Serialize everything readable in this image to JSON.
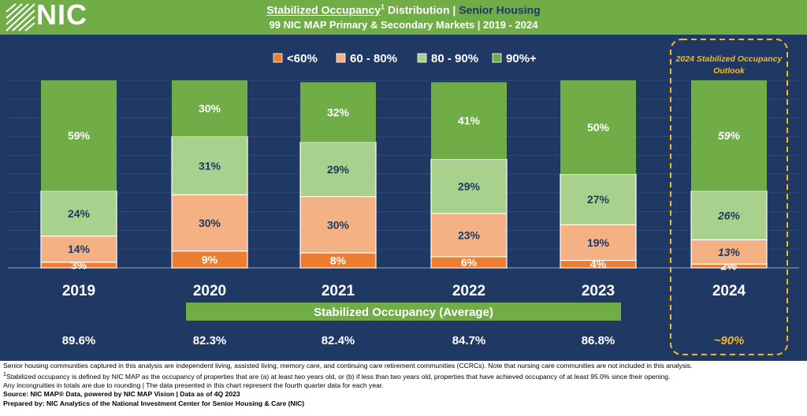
{
  "header": {
    "logo_text": "NIC",
    "title_part1": "Stabilized Occupancy",
    "title_sup": "1",
    "title_part2": " Distribution | ",
    "title_part3": "Senior Housing",
    "subtitle": "99 NIC MAP Primary & Secondary Markets | 2019 - 2024"
  },
  "outlook_label": "2024 Stabilized Occupancy Outlook",
  "average_banner": "Stabilized Occupancy (Average)",
  "colors": {
    "background": "#1f3864",
    "header": "#70ad47",
    "lt60": "#ed7d31",
    "60_80": "#f4b183",
    "80_90": "#a9d18e",
    "90_plus": "#70ad47",
    "outlook": "#f5b820"
  },
  "chart_data": {
    "type": "bar",
    "stacked": true,
    "percent_stacked": true,
    "categories": [
      "2019",
      "2020",
      "2021",
      "2022",
      "2023",
      "2024"
    ],
    "series": [
      {
        "name": "<60%",
        "labels": [
          "3%",
          "9%",
          "8%",
          "6%",
          "4%",
          "2%"
        ],
        "values": [
          3,
          9,
          8,
          6,
          4,
          2
        ]
      },
      {
        "name": "60 - 80%",
        "labels": [
          "14%",
          "30%",
          "30%",
          "23%",
          "19%",
          "13%"
        ],
        "values": [
          14,
          30,
          30,
          23,
          19,
          13
        ]
      },
      {
        "name": "80 - 90%",
        "labels": [
          "24%",
          "31%",
          "29%",
          "29%",
          "27%",
          "26%"
        ],
        "values": [
          24,
          31,
          29,
          29,
          27,
          26
        ]
      },
      {
        "name": "90%+",
        "labels": [
          "59%",
          "30%",
          "32%",
          "41%",
          "50%",
          "59%"
        ],
        "values": [
          59,
          30,
          32,
          41,
          50,
          59
        ]
      }
    ],
    "averages": [
      "89.6%",
      "82.3%",
      "82.4%",
      "84.7%",
      "86.8%",
      "~90%"
    ],
    "outlook_index": 5,
    "legend_position": "top-center",
    "ylim": [
      0,
      100
    ]
  },
  "footer": {
    "line1": "Senior housing communities captured in this analysis are independent living, assisted living, memory care, and continuing care retirement communities (CCRCs). Note that nursing care communities are not included in this analysis.",
    "line2_sup": "1",
    "line2": "Stabilized occupancy is defined by NIC MAP as the occupancy of properties that are (a) at least two years old, or (b) if less than two years old, properties that have achieved occupancy of at least 95.0% since their opening.",
    "line3": "Any incongruities in totals are due to rounding | The data presented in this chart represent the fourth quarter data for each year.",
    "line4": "Source: NIC MAP® Data, powered by NIC MAP Vision | Data as of 4Q 2023",
    "line5": "Prepared by: NIC Analytics of the National Investment Center for Senior Housing & Care (NIC)"
  }
}
